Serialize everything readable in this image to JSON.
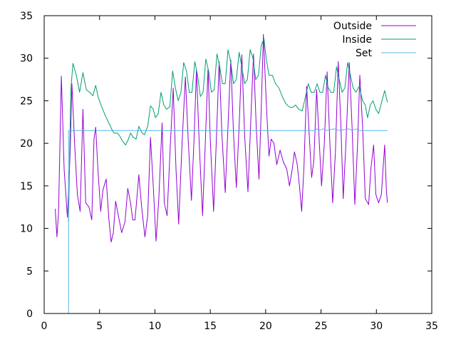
{
  "chart_data": {
    "type": "line",
    "title": "",
    "xlabel": "",
    "ylabel": "",
    "xlim": [
      0,
      35
    ],
    "ylim": [
      0,
      35
    ],
    "xticks": [
      0,
      5,
      10,
      15,
      20,
      25,
      30,
      35
    ],
    "yticks": [
      0,
      5,
      10,
      15,
      20,
      25,
      30,
      35
    ],
    "grid": false,
    "legend_position": "top-right",
    "series": [
      {
        "name": "Outside",
        "color": "#9400d3",
        "points": [
          [
            1.0,
            12.3
          ],
          [
            1.15,
            9.0
          ],
          [
            1.3,
            12.0
          ],
          [
            1.55,
            27.9
          ],
          [
            1.8,
            17.0
          ],
          [
            2.1,
            11.3
          ],
          [
            2.35,
            19.0
          ],
          [
            2.5,
            27.0
          ],
          [
            2.75,
            20.0
          ],
          [
            3.0,
            14.0
          ],
          [
            3.25,
            12.0
          ],
          [
            3.5,
            24.0
          ],
          [
            3.75,
            13.0
          ],
          [
            4.05,
            12.5
          ],
          [
            4.3,
            11.0
          ],
          [
            4.5,
            20.5
          ],
          [
            4.65,
            21.9
          ],
          [
            4.85,
            17.0
          ],
          [
            5.1,
            12.0
          ],
          [
            5.3,
            14.5
          ],
          [
            5.6,
            15.8
          ],
          [
            5.85,
            11.0
          ],
          [
            6.05,
            8.4
          ],
          [
            6.25,
            9.5
          ],
          [
            6.45,
            13.2
          ],
          [
            6.7,
            11.5
          ],
          [
            7.0,
            9.5
          ],
          [
            7.3,
            10.8
          ],
          [
            7.55,
            14.7
          ],
          [
            7.8,
            13.0
          ],
          [
            8.0,
            11.0
          ],
          [
            8.2,
            11.0
          ],
          [
            8.55,
            16.3
          ],
          [
            8.8,
            12.5
          ],
          [
            9.1,
            9.0
          ],
          [
            9.35,
            11.5
          ],
          [
            9.6,
            20.7
          ],
          [
            9.85,
            15.0
          ],
          [
            10.1,
            8.5
          ],
          [
            10.35,
            13.5
          ],
          [
            10.65,
            22.4
          ],
          [
            10.85,
            13.0
          ],
          [
            11.1,
            11.5
          ],
          [
            11.4,
            20.0
          ],
          [
            11.65,
            26.5
          ],
          [
            11.9,
            17.0
          ],
          [
            12.15,
            10.5
          ],
          [
            12.45,
            20.0
          ],
          [
            12.75,
            27.8
          ],
          [
            13.0,
            20.5
          ],
          [
            13.3,
            13.3
          ],
          [
            13.55,
            21.0
          ],
          [
            13.75,
            28.6
          ],
          [
            14.0,
            20.0
          ],
          [
            14.3,
            11.5
          ],
          [
            14.55,
            20.0
          ],
          [
            14.8,
            28.8
          ],
          [
            15.0,
            20.5
          ],
          [
            15.3,
            12.0
          ],
          [
            15.55,
            20.5
          ],
          [
            15.8,
            29.6
          ],
          [
            16.05,
            21.0
          ],
          [
            16.35,
            14.2
          ],
          [
            16.6,
            22.0
          ],
          [
            16.85,
            29.8
          ],
          [
            17.1,
            21.0
          ],
          [
            17.35,
            14.8
          ],
          [
            17.6,
            22.0
          ],
          [
            17.85,
            30.4
          ],
          [
            18.1,
            21.0
          ],
          [
            18.4,
            14.3
          ],
          [
            18.65,
            22.5
          ],
          [
            18.9,
            30.5
          ],
          [
            19.15,
            22.0
          ],
          [
            19.4,
            15.8
          ],
          [
            19.6,
            24.0
          ],
          [
            19.8,
            32.8
          ],
          [
            20.05,
            25.0
          ],
          [
            20.3,
            18.5
          ],
          [
            20.5,
            20.5
          ],
          [
            20.75,
            20.0
          ],
          [
            21.0,
            17.5
          ],
          [
            21.3,
            19.2
          ],
          [
            21.6,
            17.8
          ],
          [
            21.9,
            17.0
          ],
          [
            22.15,
            15.0
          ],
          [
            22.4,
            17.0
          ],
          [
            22.6,
            19.0
          ],
          [
            22.85,
            17.5
          ],
          [
            23.05,
            15.0
          ],
          [
            23.25,
            12.0
          ],
          [
            23.45,
            17.0
          ],
          [
            23.7,
            26.7
          ],
          [
            23.95,
            20.5
          ],
          [
            24.15,
            16.0
          ],
          [
            24.35,
            18.0
          ],
          [
            24.6,
            26.3
          ],
          [
            24.85,
            20.0
          ],
          [
            25.05,
            15.0
          ],
          [
            25.3,
            20.0
          ],
          [
            25.55,
            28.4
          ],
          [
            25.8,
            20.0
          ],
          [
            26.05,
            13.0
          ],
          [
            26.3,
            19.0
          ],
          [
            26.55,
            29.6
          ],
          [
            26.8,
            22.0
          ],
          [
            27.0,
            13.5
          ],
          [
            27.25,
            20.0
          ],
          [
            27.55,
            29.5
          ],
          [
            27.8,
            22.0
          ],
          [
            28.05,
            12.8
          ],
          [
            28.3,
            20.0
          ],
          [
            28.5,
            28.0
          ],
          [
            28.75,
            22.0
          ],
          [
            29.0,
            13.5
          ],
          [
            29.3,
            12.8
          ],
          [
            29.5,
            17.0
          ],
          [
            29.75,
            19.8
          ],
          [
            29.95,
            14.0
          ],
          [
            30.2,
            13.0
          ],
          [
            30.45,
            14.0
          ],
          [
            30.6,
            17.0
          ],
          [
            30.75,
            19.8
          ],
          [
            30.9,
            14.5
          ],
          [
            31.0,
            13.0
          ]
        ]
      },
      {
        "name": "Inside",
        "color": "#009e73",
        "points": [
          [
            2.2,
            10.8
          ],
          [
            2.4,
            26.2
          ],
          [
            2.6,
            29.4
          ],
          [
            2.9,
            28.0
          ],
          [
            3.2,
            26.0
          ],
          [
            3.5,
            28.3
          ],
          [
            3.8,
            26.3
          ],
          [
            4.1,
            26.0
          ],
          [
            4.4,
            25.6
          ],
          [
            4.65,
            26.8
          ],
          [
            4.9,
            25.3
          ],
          [
            5.2,
            24.3
          ],
          [
            5.5,
            23.3
          ],
          [
            5.8,
            22.5
          ],
          [
            6.05,
            21.8
          ],
          [
            6.3,
            21.2
          ],
          [
            6.6,
            21.2
          ],
          [
            6.85,
            20.8
          ],
          [
            7.1,
            20.2
          ],
          [
            7.35,
            19.8
          ],
          [
            7.55,
            20.3
          ],
          [
            7.8,
            21.2
          ],
          [
            8.05,
            20.7
          ],
          [
            8.3,
            20.5
          ],
          [
            8.55,
            22.0
          ],
          [
            8.8,
            21.3
          ],
          [
            9.05,
            21.0
          ],
          [
            9.35,
            22.0
          ],
          [
            9.6,
            24.4
          ],
          [
            9.85,
            24.0
          ],
          [
            10.05,
            23.0
          ],
          [
            10.3,
            23.5
          ],
          [
            10.55,
            26.0
          ],
          [
            10.8,
            24.5
          ],
          [
            11.05,
            24.0
          ],
          [
            11.35,
            24.3
          ],
          [
            11.6,
            28.5
          ],
          [
            11.85,
            26.5
          ],
          [
            12.1,
            25.0
          ],
          [
            12.35,
            26.0
          ],
          [
            12.6,
            29.5
          ],
          [
            12.85,
            28.5
          ],
          [
            13.1,
            26.0
          ],
          [
            13.35,
            26.0
          ],
          [
            13.6,
            29.6
          ],
          [
            13.85,
            28.0
          ],
          [
            14.1,
            25.5
          ],
          [
            14.35,
            26.0
          ],
          [
            14.6,
            29.9
          ],
          [
            14.85,
            28.5
          ],
          [
            15.1,
            26.0
          ],
          [
            15.35,
            26.3
          ],
          [
            15.6,
            30.5
          ],
          [
            15.85,
            29.0
          ],
          [
            16.1,
            27.0
          ],
          [
            16.35,
            27.0
          ],
          [
            16.6,
            31.0
          ],
          [
            16.85,
            29.5
          ],
          [
            17.1,
            27.0
          ],
          [
            17.35,
            27.5
          ],
          [
            17.6,
            30.7
          ],
          [
            17.85,
            29.0
          ],
          [
            18.1,
            27.0
          ],
          [
            18.35,
            27.5
          ],
          [
            18.6,
            31.0
          ],
          [
            18.85,
            30.0
          ],
          [
            19.1,
            27.5
          ],
          [
            19.35,
            28.0
          ],
          [
            19.6,
            31.5
          ],
          [
            19.85,
            32.3
          ],
          [
            20.05,
            30.0
          ],
          [
            20.3,
            28.0
          ],
          [
            20.6,
            28.0
          ],
          [
            20.9,
            27.0
          ],
          [
            21.2,
            26.5
          ],
          [
            21.5,
            25.5
          ],
          [
            21.8,
            24.7
          ],
          [
            22.1,
            24.3
          ],
          [
            22.4,
            24.2
          ],
          [
            22.7,
            24.5
          ],
          [
            23.0,
            24.0
          ],
          [
            23.3,
            23.8
          ],
          [
            23.6,
            25.5
          ],
          [
            23.85,
            27.0
          ],
          [
            24.1,
            26.0
          ],
          [
            24.4,
            26.0
          ],
          [
            24.65,
            27.0
          ],
          [
            24.9,
            26.0
          ],
          [
            25.15,
            26.0
          ],
          [
            25.4,
            28.0
          ],
          [
            25.65,
            26.5
          ],
          [
            25.9,
            26.0
          ],
          [
            26.15,
            26.0
          ],
          [
            26.4,
            29.0
          ],
          [
            26.65,
            27.5
          ],
          [
            26.9,
            26.0
          ],
          [
            27.15,
            26.5
          ],
          [
            27.4,
            29.5
          ],
          [
            27.65,
            28.0
          ],
          [
            27.9,
            26.5
          ],
          [
            28.15,
            26.0
          ],
          [
            28.45,
            26.7
          ],
          [
            28.75,
            25.0
          ],
          [
            29.0,
            24.5
          ],
          [
            29.2,
            23.0
          ],
          [
            29.45,
            24.5
          ],
          [
            29.7,
            25.0
          ],
          [
            29.95,
            24.0
          ],
          [
            30.2,
            23.5
          ],
          [
            30.5,
            25.0
          ],
          [
            30.75,
            26.2
          ],
          [
            31.0,
            24.8
          ]
        ]
      },
      {
        "name": "Set",
        "color": "#56b4e9",
        "points": [
          [
            2.2,
            0.0
          ],
          [
            2.2,
            21.5
          ],
          [
            24.4,
            21.5
          ],
          [
            24.6,
            21.7
          ],
          [
            24.8,
            21.5
          ],
          [
            25.2,
            21.7
          ],
          [
            25.5,
            21.5
          ],
          [
            26.2,
            21.7
          ],
          [
            26.6,
            21.5
          ],
          [
            27.5,
            21.7
          ],
          [
            27.8,
            21.5
          ],
          [
            28.2,
            21.7
          ],
          [
            28.5,
            21.5
          ],
          [
            31.0,
            21.5
          ]
        ]
      }
    ]
  }
}
